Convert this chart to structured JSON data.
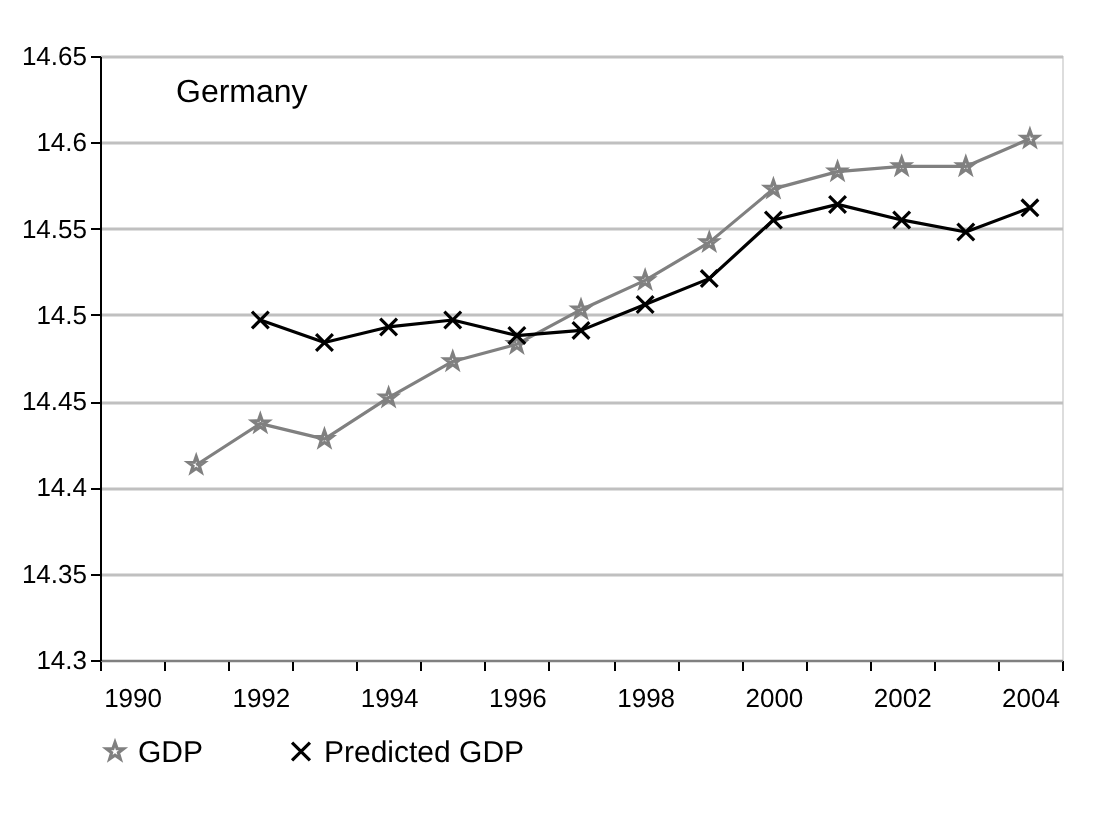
{
  "chart_data": {
    "type": "line",
    "title": "Germany",
    "categories": [
      "1990",
      null,
      "1992",
      null,
      "1994",
      null,
      "1996",
      null,
      "1998",
      null,
      "2000",
      null,
      "2002",
      null,
      "2004"
    ],
    "series": [
      {
        "name": "GDP",
        "color": "#808080",
        "marker": "star",
        "values": [
          null,
          14.413,
          14.437,
          14.428,
          14.452,
          14.473,
          14.483,
          14.503,
          14.52,
          14.542,
          14.573,
          14.583,
          14.586,
          14.586,
          14.602
        ]
      },
      {
        "name": "Predicted GDP",
        "color": "#000000",
        "marker": "cross",
        "values": [
          null,
          null,
          14.497,
          14.484,
          14.493,
          14.497,
          14.488,
          14.491,
          14.506,
          14.521,
          14.555,
          14.564,
          14.555,
          14.548,
          14.562
        ]
      }
    ],
    "ylim": [
      14.3,
      14.65
    ],
    "yticks": [
      14.3,
      14.35,
      14.4,
      14.45,
      14.5,
      14.55,
      14.6,
      14.65
    ],
    "grid": "y",
    "legend": "bottom",
    "line_style": "solid"
  }
}
